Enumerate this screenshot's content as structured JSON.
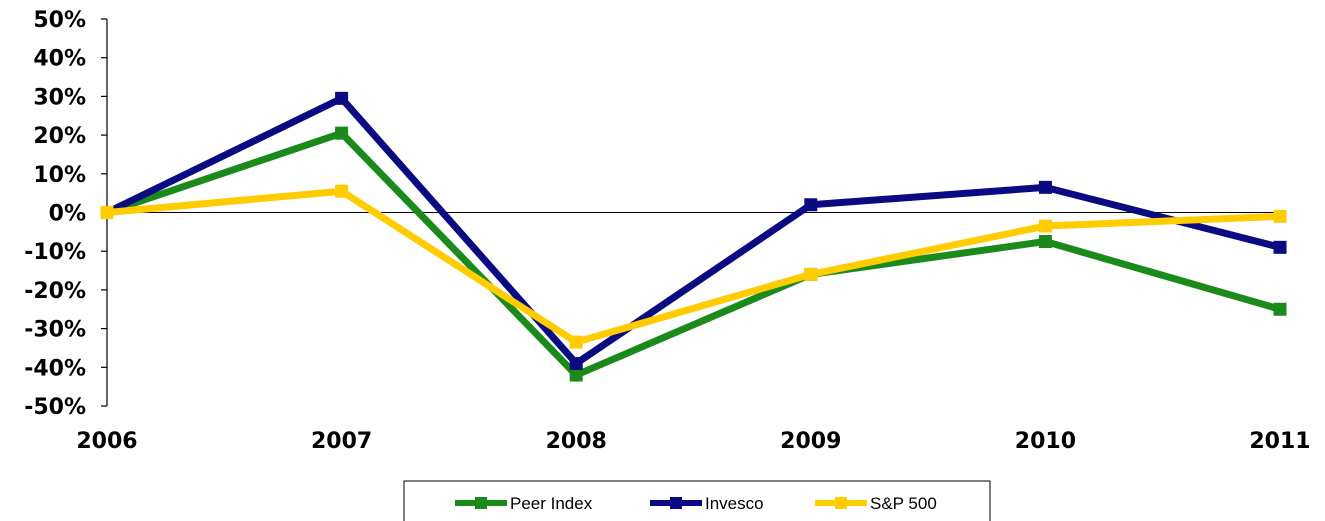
{
  "chart_data": {
    "type": "line",
    "x": [
      "2006",
      "2007",
      "2008",
      "2009",
      "2010",
      "2011"
    ],
    "y_ticks": [
      "50%",
      "40%",
      "30%",
      "20%",
      "10%",
      "0%",
      "-10%",
      "-20%",
      "-30%",
      "-40%",
      "-50%"
    ],
    "ylim": [
      -50,
      50
    ],
    "grid": false,
    "legend_position": "bottom-center",
    "series": [
      {
        "name": "Peer Index",
        "color": "#1a8a1a",
        "values": [
          0,
          20.5,
          -42,
          -16,
          -7.5,
          -25
        ]
      },
      {
        "name": "Invesco",
        "color": "#0a0a82",
        "values": [
          0,
          29.5,
          -39,
          2,
          6.5,
          -9
        ]
      },
      {
        "name": "S&P 500",
        "color": "#ffcc00",
        "values": [
          0,
          5.5,
          -33.5,
          -16,
          -3.5,
          -1
        ]
      }
    ]
  }
}
